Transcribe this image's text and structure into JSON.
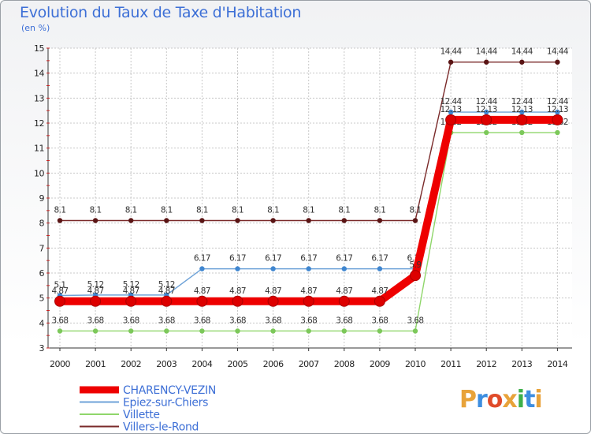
{
  "header": {
    "title": "Evolution du Taux de Taxe d'Habitation",
    "unit": "(en %)"
  },
  "logo": {
    "text": "Proxiti",
    "colors": [
      "#e8a33a",
      "#3d8ee0",
      "#e04b2a",
      "#e8a33a",
      "#3db04a",
      "#3d8ee0",
      "#e8a33a"
    ]
  },
  "chart_data": {
    "type": "line",
    "title": "Evolution du Taux de Taxe d'Habitation",
    "ylabel": "(en %)",
    "xlabel": "",
    "ylim": [
      3,
      15
    ],
    "yticks": [
      3,
      4,
      5,
      6,
      7,
      8,
      9,
      10,
      11,
      12,
      13,
      14,
      15
    ],
    "x": [
      "2000",
      "2001",
      "2002",
      "2003",
      "2004",
      "2005",
      "2006",
      "2007",
      "2008",
      "2009",
      "2010",
      "2011",
      "2012",
      "2013",
      "2014"
    ],
    "grid": true,
    "legend_position": "bottom-left",
    "series": [
      {
        "name": "Villers-le-Rond",
        "color": "#7a2a2a",
        "marker": "#5a1515",
        "thick": false,
        "values": [
          8.1,
          8.1,
          8.1,
          8.1,
          8.1,
          8.1,
          8.1,
          8.1,
          8.1,
          8.1,
          8.1,
          14.44,
          14.44,
          14.44,
          14.44
        ],
        "labels": [
          "8.1",
          "8.1",
          "8.1",
          "8.1",
          "8.1",
          "8.1",
          "8.1",
          "8.1",
          "8.1",
          "8.1",
          "8.1",
          "14.44",
          "14.44",
          "14.44",
          "14.44"
        ]
      },
      {
        "name": "Villette",
        "color": "#8fd66a",
        "marker": "#7cc85a",
        "thick": false,
        "values": [
          3.68,
          3.68,
          3.68,
          3.68,
          3.68,
          3.68,
          3.68,
          3.68,
          3.68,
          3.68,
          3.68,
          11.62,
          11.62,
          11.62,
          11.62
        ],
        "labels": [
          "3.68",
          "3.68",
          "3.68",
          "3.68",
          "3.68",
          "3.68",
          "3.68",
          "3.68",
          "3.68",
          "3.68",
          "3.68",
          "11.62",
          "11.62",
          "11.62",
          "11.62"
        ]
      },
      {
        "name": "Epiez-sur-Chiers",
        "color": "#6fa3d8",
        "marker": "#3f86d0",
        "thick": false,
        "values": [
          5.1,
          5.12,
          5.12,
          5.12,
          6.17,
          6.17,
          6.17,
          6.17,
          6.17,
          6.17,
          6.17,
          12.44,
          12.44,
          12.44,
          12.44
        ],
        "labels": [
          "5.1",
          "5.12",
          "5.12",
          "5.12",
          "6.17",
          "6.17",
          "6.17",
          "6.17",
          "6.17",
          "6.17",
          "6.17",
          "12.44",
          "12.44",
          "12.44",
          "12.44"
        ]
      },
      {
        "name": "CHARENCY-VEZIN",
        "color": "#ee0000",
        "marker": "#dd0000",
        "thick": true,
        "values": [
          4.87,
          4.87,
          4.87,
          4.87,
          4.87,
          4.87,
          4.87,
          4.87,
          4.87,
          4.87,
          5.9,
          12.13,
          12.13,
          12.13,
          12.13
        ],
        "labels": [
          "4.87",
          "4.87",
          "4.87",
          "4.87",
          "4.87",
          "4.87",
          "4.87",
          "4.87",
          "4.87",
          "4.87",
          "5.9",
          "12.13",
          "12.13",
          "12.13",
          "12.13"
        ]
      }
    ],
    "legend": [
      "CHARENCY-VEZIN",
      "Epiez-sur-Chiers",
      "Villette",
      "Villers-le-Rond"
    ]
  }
}
